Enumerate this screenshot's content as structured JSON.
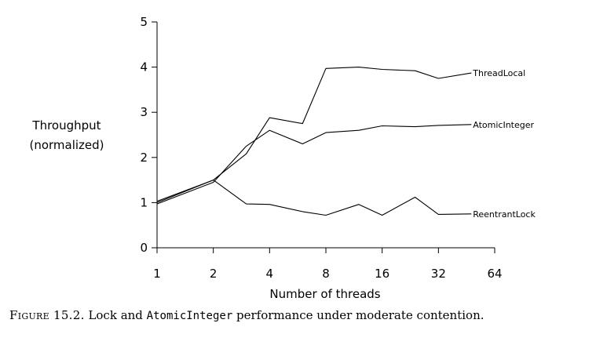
{
  "chart_data": {
    "type": "line",
    "x_scale": "log2",
    "x": [
      1,
      2,
      3,
      4,
      6,
      8,
      12,
      16,
      24,
      32,
      48
    ],
    "xticks": [
      1,
      2,
      4,
      8,
      16,
      32,
      64
    ],
    "xtick_labels": [
      "1",
      "2",
      "4",
      "8",
      "16",
      "32",
      "64"
    ],
    "xlim": [
      1,
      64
    ],
    "yticks": [
      0,
      1,
      2,
      3,
      4,
      5
    ],
    "ytick_labels": [
      "0",
      "1",
      "2",
      "3",
      "4",
      "5"
    ],
    "ylim": [
      0,
      5
    ],
    "xlabel": "Number of threads",
    "ylabel_line1": "Throughput",
    "ylabel_line2": "(normalized)",
    "grid": false,
    "series": [
      {
        "name": "ThreadLocal",
        "values": [
          1.03,
          1.5,
          2.08,
          2.88,
          2.75,
          3.97,
          4.0,
          3.95,
          3.92,
          3.75,
          3.87
        ]
      },
      {
        "name": "AtomicInteger",
        "values": [
          0.97,
          1.45,
          2.25,
          2.6,
          2.3,
          2.55,
          2.6,
          2.7,
          2.68,
          2.71,
          2.73
        ]
      },
      {
        "name": "ReentrantLock",
        "values": [
          1.0,
          1.5,
          0.97,
          0.96,
          0.8,
          0.72,
          0.96,
          0.72,
          1.12,
          0.74,
          0.75
        ]
      }
    ]
  },
  "caption": {
    "lead": "Figure 15.2.",
    "text_before": " Lock and ",
    "code": "AtomicInteger",
    "text_after": " performance under moderate contention."
  }
}
